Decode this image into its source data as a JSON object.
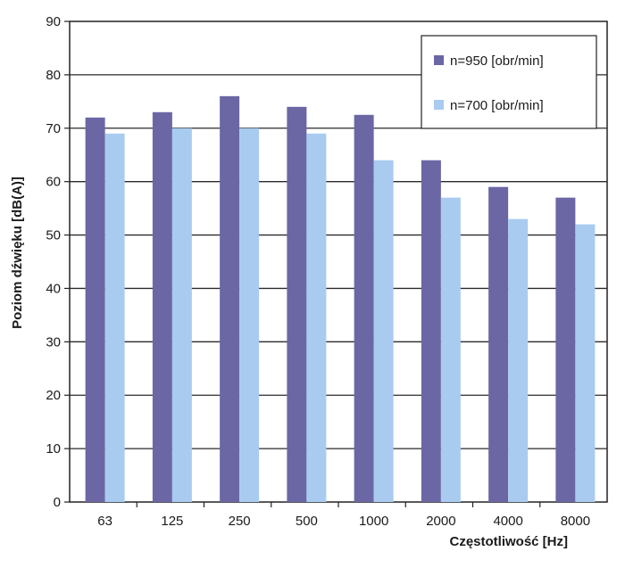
{
  "chart_data": {
    "type": "bar",
    "title": "",
    "xlabel": "Częstotliwość [Hz]",
    "ylabel": "Poziom dźwięku [dB(A)]",
    "ylim": [
      0,
      90
    ],
    "yticks": [
      0,
      10,
      20,
      30,
      40,
      50,
      60,
      70,
      80,
      90
    ],
    "grid": true,
    "legend_position": "top-right",
    "categories": [
      "63",
      "125",
      "250",
      "500",
      "1000",
      "2000",
      "4000",
      "8000"
    ],
    "series": [
      {
        "name": "n=950 [obr/min]",
        "color": "#6b67a5",
        "values": [
          72,
          73,
          76,
          74,
          72.5,
          64,
          59,
          57
        ]
      },
      {
        "name": "n=700 [obr/min]",
        "color": "#a9cbf0",
        "values": [
          69,
          70,
          70,
          69,
          64,
          57,
          53,
          52
        ]
      }
    ]
  }
}
